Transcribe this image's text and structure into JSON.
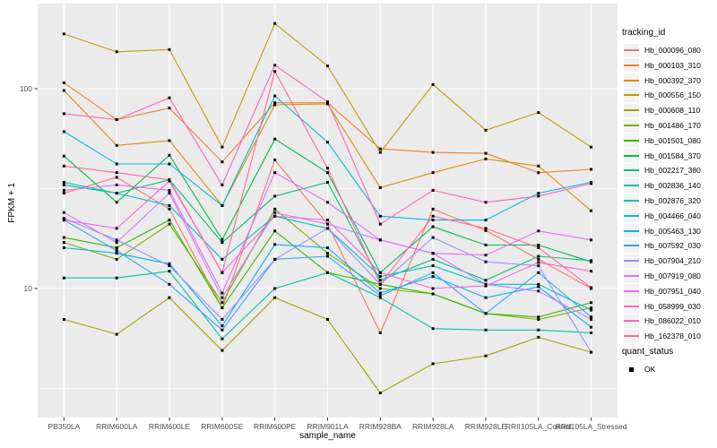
{
  "figure": {
    "background": "#FFFFFF",
    "panel_background": "#EBEBEB",
    "gridline_color": "#FFFFFF",
    "tick_color": "#333333",
    "tick_label_color": "#4D4D4D",
    "point_color": "#000000",
    "point_shape": "filled-square"
  },
  "axes": {
    "x_title": "sample_name",
    "y_title": "FPKM + 1",
    "y_scale": "log10",
    "y_tick_labels": [
      "100",
      "10"
    ],
    "y_tick_values": [
      100,
      10
    ],
    "y_minor_gridline_values": [
      31.623,
      3.1623
    ]
  },
  "legend": {
    "tracking_title": "tracking_id",
    "quant_title": "quant_status",
    "quant_items": [
      {
        "label": "OK",
        "marker": "black-square"
      }
    ]
  },
  "chart_data": {
    "type": "line",
    "title": "",
    "xlabel": "sample_name",
    "ylabel": "FPKM + 1",
    "y_scale": "log10",
    "ylim": [
      2.3,
      265
    ],
    "grid": "on",
    "legend_position": "right",
    "marker": "black-square",
    "categories": [
      "PB350LA",
      "RRIM600LA",
      "RRIM600LE",
      "RRIM600SE",
      "RRIM600PE",
      "RRIM901LA",
      "RRIM928BA",
      "RRIM928LA",
      "RRIM928LE",
      "RRII105LA_Control",
      "RRII105LA_Stressed"
    ],
    "series": [
      {
        "name": "Hb_000096_080",
        "color": "#F8766D",
        "values": [
          30,
          36,
          25,
          8,
          44,
          21,
          6,
          25,
          19.5,
          14,
          10
        ]
      },
      {
        "name": "Hb_000103_310",
        "color": "#EA8331",
        "values": [
          107,
          70,
          80,
          43,
          85,
          85,
          50,
          48,
          47.5,
          38,
          39.5
        ]
      },
      {
        "name": "Hb_000392_370",
        "color": "#D89000",
        "values": [
          98,
          52,
          55,
          26,
          83,
          84,
          32,
          38,
          44.5,
          41,
          24.5
        ]
      },
      {
        "name": "Hb_000556_150",
        "color": "#C09B00",
        "values": [
          188,
          153,
          157,
          51,
          212,
          130,
          48,
          105,
          62,
          76,
          51
        ]
      },
      {
        "name": "Hb_000608_110",
        "color": "#A3A500",
        "values": [
          7,
          5.9,
          9,
          4.9,
          9,
          7,
          3,
          4.2,
          4.6,
          5.7,
          4.8
        ]
      },
      {
        "name": "Hb_001486_170",
        "color": "#7CAE00",
        "values": [
          17,
          14,
          21,
          8.5,
          25,
          15,
          10,
          9.4,
          7.5,
          7,
          8
        ]
      },
      {
        "name": "Hb_001501_080",
        "color": "#39B600",
        "values": [
          18,
          16,
          22,
          8,
          19.4,
          12,
          10.5,
          9.4,
          7.5,
          7.2,
          8.5
        ]
      },
      {
        "name": "Hb_001584_370",
        "color": "#00BB4E",
        "values": [
          46,
          27,
          46.5,
          17.6,
          56,
          38,
          12,
          20.4,
          16.5,
          16.5,
          13.6
        ]
      },
      {
        "name": "Hb_002217_380",
        "color": "#00BF7D",
        "values": [
          33,
          30,
          35,
          17,
          29,
          34,
          11,
          14,
          11,
          14.5,
          13.8
        ]
      },
      {
        "name": "Hb_002836_140",
        "color": "#00C1A3",
        "values": [
          11.3,
          11.3,
          12.2,
          5.6,
          10,
          12,
          9,
          6.3,
          6.2,
          6.2,
          6
        ]
      },
      {
        "name": "Hb_002876_320",
        "color": "#00BFC4",
        "values": [
          34,
          30,
          26,
          14,
          23,
          20,
          11.5,
          13,
          10.5,
          10.5,
          7.8
        ]
      },
      {
        "name": "Hb_004466_040",
        "color": "#00BAE0",
        "values": [
          61,
          42,
          42,
          26,
          92,
          54,
          23,
          22,
          22,
          30,
          34
        ]
      },
      {
        "name": "Hb_005463_130",
        "color": "#00B0F6",
        "values": [
          16,
          15,
          13.3,
          6.5,
          16.6,
          16,
          9.5,
          11.5,
          9,
          10.2,
          6.4
        ]
      },
      {
        "name": "Hb_007592_030",
        "color": "#35A2FF",
        "values": [
          22,
          15.5,
          10.5,
          6.2,
          14,
          14.5,
          9.2,
          12,
          7.5,
          12,
          7.2
        ]
      },
      {
        "name": "Hb_007904_210",
        "color": "#9590FF",
        "values": [
          22.5,
          17.5,
          13,
          7,
          14,
          20,
          10.5,
          18,
          13.6,
          13,
          4.8
        ]
      },
      {
        "name": "Hb_007919_080",
        "color": "#C77CFF",
        "values": [
          24,
          17,
          30,
          9,
          24,
          21,
          17.5,
          15,
          10.5,
          9.7,
          7
        ]
      },
      {
        "name": "Hb_007951_040",
        "color": "#E76BF3",
        "values": [
          31,
          33,
          31,
          9.5,
          38,
          27,
          17.5,
          15,
          14.7,
          19.4,
          17.5
        ]
      },
      {
        "name": "Hb_058999_030",
        "color": "#FA62DB",
        "values": [
          22,
          20,
          34.5,
          12,
          23,
          22,
          12,
          10,
          10.3,
          13.5,
          12.2
        ]
      },
      {
        "name": "Hb_086022_010",
        "color": "#FF62BC",
        "values": [
          75,
          70,
          90,
          33,
          131,
          86,
          21,
          31,
          27,
          29,
          33.5
        ]
      },
      {
        "name": "Hb_162378_010",
        "color": "#FF6A98",
        "values": [
          41,
          38,
          35,
          12,
          122,
          40,
          10.5,
          23,
          20,
          16,
          10.1
        ]
      }
    ]
  }
}
